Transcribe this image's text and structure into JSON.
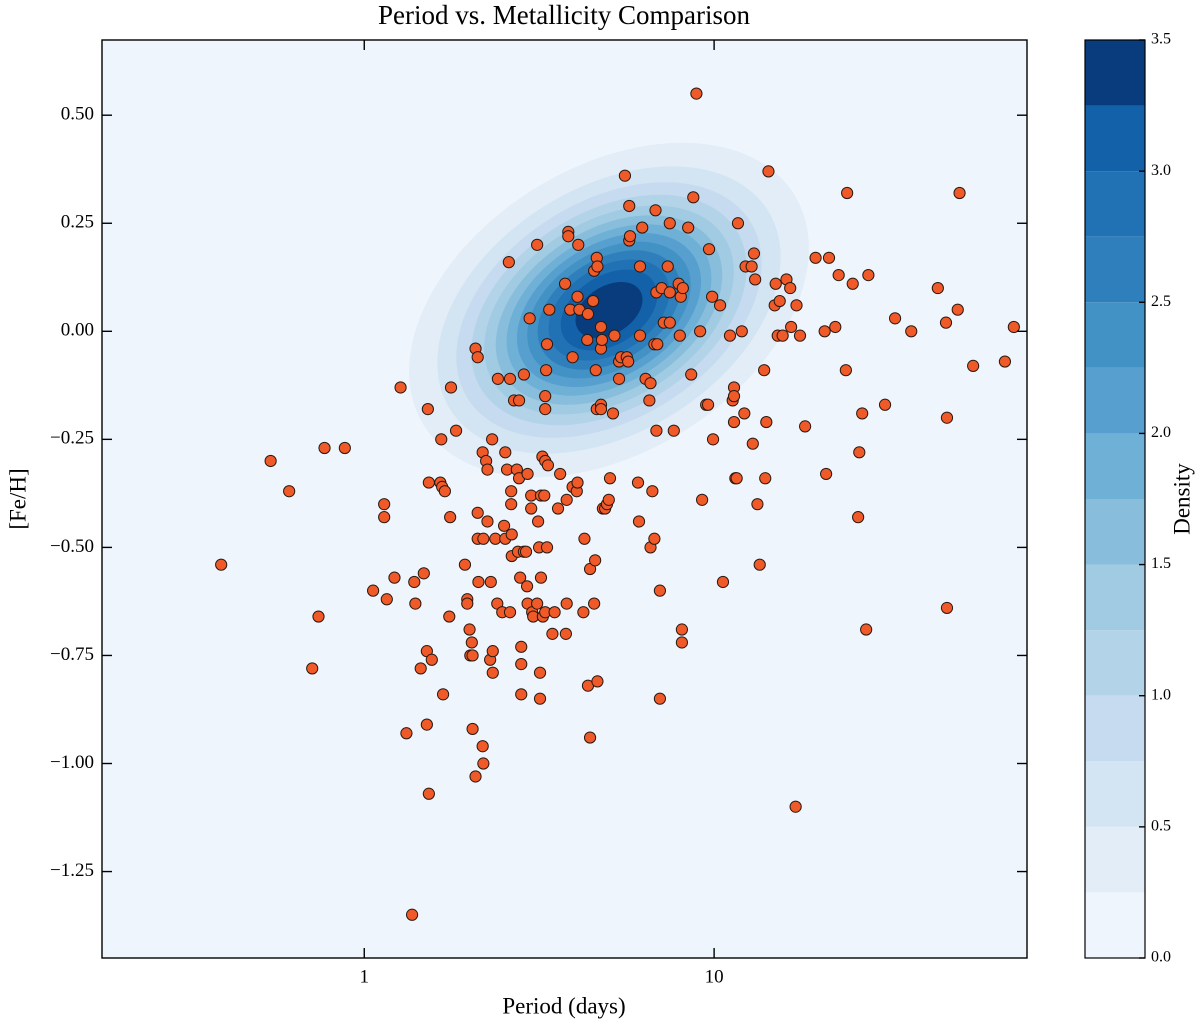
{
  "chart_data": {
    "type": "scatter",
    "title": "Period vs. Metallicity Comparison",
    "x_label": "Period (days)",
    "y_label": "[Fe/H]",
    "xscale": "log",
    "xlim": [
      0.178,
      78.4
    ],
    "ylim": [
      -1.45,
      0.674
    ],
    "xticks": [
      1,
      10
    ],
    "yticks": [
      {
        "value": 0.5,
        "label": "0.50"
      },
      {
        "value": 0.25,
        "label": "0.25"
      },
      {
        "value": 0,
        "label": "0.00"
      },
      {
        "value": -0.25,
        "label": "−0.25"
      },
      {
        "value": -0.5,
        "label": "−0.50"
      },
      {
        "value": -0.75,
        "label": "−0.75"
      },
      {
        "value": -1,
        "label": "−1.00"
      },
      {
        "value": -1.25,
        "label": "−1.25"
      }
    ],
    "color": "#f05a28",
    "edgecolor": "#2a1a12",
    "x": [
      8.9,
      0.39,
      0.54,
      0.61,
      0.77,
      0.88,
      0.71,
      0.74,
      1.27,
      1.14,
      1.14,
      1.06,
      1.16,
      1.22,
      1.32,
      1.39,
      1.4,
      1.45,
      1.48,
      1.51,
      1.51,
      1.52,
      1.53,
      1.53,
      1.56,
      1.65,
      1.66,
      1.67,
      1.7,
      1.68,
      1.75,
      1.76,
      1.77,
      1.83,
      1.37,
      1.94,
      1.97,
      1.97,
      2.0,
      2.01,
      2.03,
      2.04,
      2.04,
      2.08,
      2.11,
      2.08,
      2.11,
      2.11,
      2.12,
      2.18,
      2.18,
      2.19,
      2.23,
      2.25,
      2.19,
      2.25,
      2.29,
      2.3,
      2.32,
      2.33,
      2.33,
      2.37,
      2.4,
      2.41,
      2.48,
      2.51,
      2.53,
      2.53,
      2.59,
      2.61,
      2.56,
      2.61,
      2.63,
      2.63,
      2.64,
      2.64,
      2.68,
      2.73,
      2.75,
      2.77,
      2.77,
      2.79,
      2.81,
      2.81,
      2.81,
      2.86,
      2.86,
      2.9,
      2.92,
      2.93,
      2.93,
      2.97,
      3.0,
      3.0,
      3.02,
      3.04,
      3.12,
      3.12,
      3.14,
      3.16,
      3.18,
      3.18,
      3.2,
      3.2,
      3.23,
      3.24,
      3.27,
      3.29,
      3.29,
      3.29,
      3.29,
      3.31,
      3.33,
      3.33,
      3.35,
      3.38,
      3.45,
      3.5,
      3.58,
      3.63,
      3.75,
      3.79,
      3.77,
      3.79,
      3.83,
      3.83,
      3.88,
      3.94,
      3.94,
      4.05,
      4.07,
      4.07,
      4.09,
      4.12,
      4.23,
      4.26,
      4.34,
      4.36,
      4.36,
      4.42,
      4.42,
      4.51,
      4.54,
      4.54,
      4.57,
      4.59,
      4.62,
      4.62,
      4.64,
      4.64,
      4.75,
      4.75,
      4.75,
      4.75,
      4.78,
      4.81,
      4.88,
      4.94,
      5.0,
      5.04,
      5.14,
      5.19,
      5.35,
      5.35,
      5.42,
      5.56,
      5.63,
      5.68,
      5.72,
      5.72,
      5.75,
      6.06,
      6.1,
      6.14,
      6.14,
      6.23,
      6.37,
      6.58,
      6.53,
      6.58,
      6.66,
      6.75,
      6.75,
      6.8,
      6.84,
      6.84,
      6.88,
      7.0,
      7.0,
      7.08,
      7.18,
      7.37,
      7.47,
      7.47,
      7.47,
      7.67,
      7.92,
      7.98,
      8.03,
      8.09,
      8.09,
      8.14,
      8.43,
      8.72,
      8.6,
      9.12,
      9.24,
      9.49,
      9.61,
      9.67,
      9.87,
      9.93,
      10.4,
      10.6,
      11.1,
      11.3,
      11.4,
      11.4,
      11.4,
      11.5,
      11.6,
      11.7,
      12.0,
      12.2,
      12.3,
      12.8,
      12.9,
      13.0,
      13.1,
      13.3,
      13.5,
      13.9,
      14.0,
      14.1,
      14.3,
      14.9,
      15.0,
      15.2,
      15.4,
      15.7,
      16.1,
      16.5,
      16.6,
      17.1,
      17.2,
      17.6,
      18.2,
      19.5,
      20.7,
      20.9,
      21.3,
      22.2,
      22.7,
      23.8,
      24.0,
      24.9,
      25.8,
      26.0,
      26.5,
      27.2,
      27.6,
      30.8,
      32.9,
      36.6,
      43.6,
      46.3,
      46.0,
      46.3,
      49.7,
      50.3,
      55.0,
      67.8,
      71.9
    ],
    "values": [
      0.55,
      -0.54,
      -0.3,
      -0.37,
      -0.27,
      -0.27,
      -0.78,
      -0.66,
      -0.13,
      -0.4,
      -0.43,
      -0.6,
      -0.62,
      -0.57,
      -0.93,
      -0.58,
      -0.63,
      -0.78,
      -0.56,
      -0.74,
      -0.91,
      -0.18,
      -1.07,
      -0.35,
      -0.76,
      -0.35,
      -0.25,
      -0.36,
      -0.37,
      -0.84,
      -0.66,
      -0.43,
      -0.13,
      -0.23,
      -1.35,
      -0.54,
      -0.62,
      -0.63,
      -0.69,
      -0.75,
      -0.72,
      -0.92,
      -0.75,
      -0.04,
      -0.06,
      -1.03,
      -0.48,
      -0.42,
      -0.58,
      -0.28,
      -0.96,
      -1.0,
      -0.3,
      -0.32,
      -0.48,
      -0.44,
      -0.76,
      -0.58,
      -0.25,
      -0.79,
      -0.74,
      -0.48,
      -0.63,
      -0.11,
      -0.65,
      -0.45,
      -0.48,
      -0.28,
      0.16,
      -0.11,
      -0.32,
      -0.65,
      -0.37,
      -0.4,
      -0.47,
      -0.52,
      -0.16,
      -0.32,
      -0.51,
      -0.16,
      -0.34,
      -0.57,
      -0.73,
      -0.77,
      -0.84,
      -0.51,
      -0.1,
      -0.51,
      -0.59,
      -0.33,
      -0.63,
      0.03,
      -0.38,
      -0.41,
      -0.65,
      -0.66,
      0.2,
      -0.63,
      -0.44,
      -0.5,
      -0.85,
      -0.79,
      -0.38,
      -0.57,
      -0.29,
      -0.66,
      -0.38,
      -0.18,
      -0.15,
      -0.3,
      -0.65,
      -0.09,
      -0.03,
      -0.5,
      -0.31,
      0.05,
      -0.7,
      -0.65,
      -0.41,
      -0.33,
      0.11,
      -0.63,
      -0.7,
      -0.39,
      0.23,
      0.22,
      0.05,
      -0.06,
      -0.36,
      -0.37,
      0.08,
      -0.35,
      0.2,
      0.05,
      -0.65,
      -0.48,
      -0.02,
      0.04,
      -0.82,
      -0.55,
      -0.94,
      0.07,
      0.14,
      -0.63,
      -0.53,
      -0.09,
      -0.18,
      0.17,
      -0.81,
      0.15,
      -0.17,
      -0.18,
      0.01,
      -0.04,
      -0.02,
      -0.41,
      -0.41,
      -0.4,
      -0.39,
      -0.34,
      -0.19,
      -0.01,
      -0.07,
      -0.11,
      -0.06,
      0.36,
      -0.06,
      -0.07,
      0.29,
      0.21,
      0.22,
      -0.35,
      -0.44,
      -0.01,
      0.15,
      0.24,
      -0.11,
      -0.12,
      -0.16,
      -0.5,
      -0.37,
      -0.48,
      -0.03,
      0.28,
      0.09,
      -0.23,
      -0.03,
      -0.6,
      -0.85,
      0.1,
      0.02,
      0.15,
      0.25,
      0.09,
      0.02,
      -0.23,
      0.11,
      -0.01,
      0.08,
      -0.72,
      -0.69,
      0.1,
      0.24,
      0.31,
      -0.1,
      0.0,
      -0.39,
      -0.17,
      -0.17,
      0.19,
      0.08,
      -0.25,
      0.06,
      -0.58,
      -0.01,
      -0.16,
      -0.13,
      -0.21,
      -0.15,
      -0.34,
      -0.34,
      0.25,
      0.0,
      -0.19,
      0.15,
      0.15,
      -0.26,
      0.18,
      0.12,
      -0.4,
      -0.54,
      -0.09,
      -0.34,
      -0.21,
      0.37,
      0.06,
      0.11,
      -0.01,
      0.07,
      -0.01,
      0.12,
      0.1,
      0.01,
      -1.1,
      0.06,
      -0.01,
      -0.22,
      0.17,
      0.0,
      -0.33,
      0.17,
      0.01,
      0.13,
      -0.09,
      0.32,
      0.11,
      -0.43,
      -0.28,
      -0.19,
      -0.69,
      0.13,
      -0.17,
      0.03,
      0.0,
      0.1,
      -0.2,
      0.02,
      -0.64,
      0.05,
      0.32,
      -0.08,
      -0.07,
      0.01
    ],
    "colorbar": {
      "label": "Density",
      "lim": [
        0,
        3.5
      ],
      "ticks": [
        {
          "value": 0,
          "label": "0.0"
        },
        0.5,
        {
          "value": 1,
          "label": "1.0"
        },
        1.5,
        {
          "value": 2,
          "label": "2.0"
        },
        2.5,
        {
          "value": 3,
          "label": "3.0"
        },
        3.5
      ],
      "levels": [
        0,
        0.25,
        0.5,
        0.75,
        1,
        1.25,
        1.5,
        1.75,
        2,
        2.25,
        2.5,
        2.75,
        3,
        3.25,
        3.5
      ],
      "colors": [
        "#eff5fc",
        "#e2edf8",
        "#d3e4f3",
        "#c6dbef",
        "#b3d3e9",
        "#a0cbe2",
        "#88bedc",
        "#6fb0d7",
        "#569fcf",
        "#4292c6",
        "#2f7fbc",
        "#2171b5",
        "#1361a9",
        "#083c7d"
      ]
    }
  }
}
